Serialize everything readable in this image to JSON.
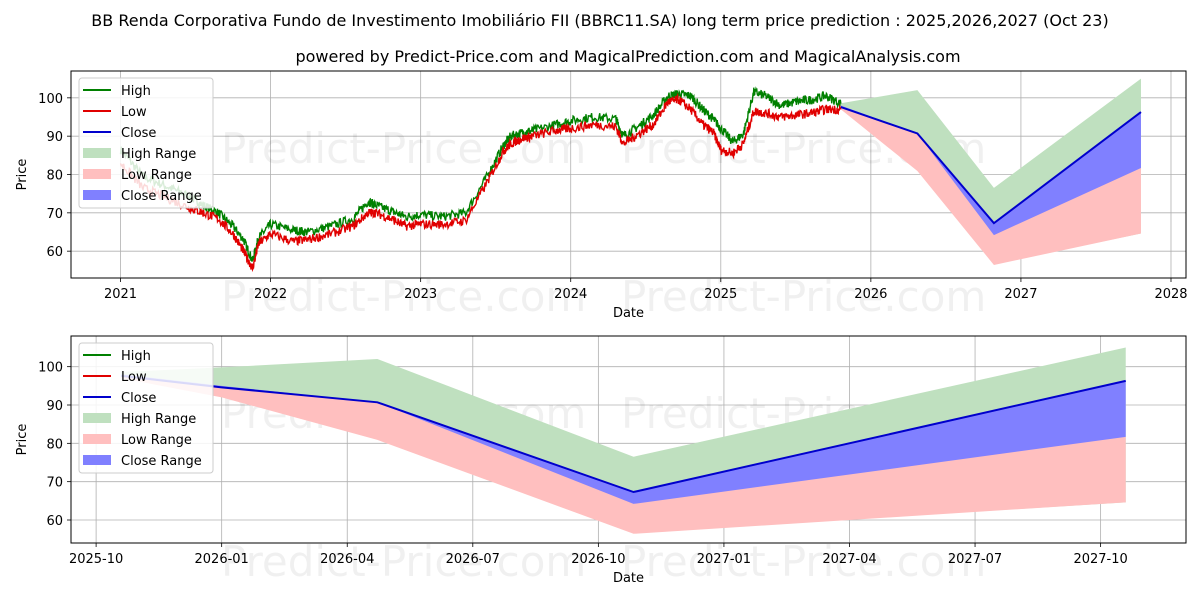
{
  "title": "BB Renda Corporativa Fundo de Investimento Imobiliário FII (BBRC11.SA) long term price prediction : 2025,2026,2027 (Oct 23)",
  "subtitle": "powered by Predict-Price.com and MagicalPrediction.com and MagicalAnalysis.com",
  "watermark": "Predict-Price.com",
  "colors": {
    "high": "#008000",
    "low": "#e00000",
    "close": "#0000cc",
    "high_range": "#bfe0bf",
    "low_range": "#ffbfbf",
    "close_range": "#8080ff",
    "grid": "#b0b0b0"
  },
  "legend": {
    "high": "High",
    "low": "Low",
    "close": "Close",
    "high_range": "High Range",
    "low_range": "Low Range",
    "close_range": "Close Range"
  },
  "chart_data": [
    {
      "type": "line",
      "id": "history",
      "xlabel": "Date",
      "ylabel": "Price",
      "xlim": [
        2020.67,
        2028.1
      ],
      "ylim": [
        53,
        107
      ],
      "xticks": [
        2021,
        2022,
        2023,
        2024,
        2025,
        2026,
        2027,
        2028
      ],
      "xtick_labels": [
        "2021",
        "2022",
        "2023",
        "2024",
        "2025",
        "2026",
        "2027",
        "2028"
      ],
      "yticks": [
        60,
        70,
        80,
        90,
        100
      ],
      "ytick_labels": [
        "60",
        "70",
        "80",
        "90",
        "100"
      ],
      "history": {
        "x": [
          2021.0,
          2021.15,
          2021.3,
          2021.45,
          2021.55,
          2021.65,
          2021.75,
          2021.82,
          2021.88,
          2021.92,
          2022.0,
          2022.15,
          2022.25,
          2022.4,
          2022.55,
          2022.65,
          2022.7,
          2022.8,
          2022.9,
          2023.0,
          2023.15,
          2023.3,
          2023.45,
          2023.55,
          2023.6,
          2023.68,
          2023.75,
          2023.9,
          2024.0,
          2024.15,
          2024.3,
          2024.35,
          2024.45,
          2024.55,
          2024.65,
          2024.72,
          2024.8,
          2024.88,
          2024.95,
          2025.0,
          2025.08,
          2025.15,
          2025.22,
          2025.3,
          2025.4,
          2025.5,
          2025.6,
          2025.7,
          2025.8
        ],
        "high": [
          86.5,
          79.5,
          77.0,
          74.5,
          72.0,
          70.0,
          66.5,
          63.0,
          57.5,
          63.5,
          67.0,
          65.5,
          65.0,
          66.5,
          68.5,
          73.0,
          72.0,
          70.5,
          69.0,
          69.5,
          69.0,
          70.0,
          80.0,
          87.5,
          90.0,
          91.0,
          91.5,
          93.0,
          94.0,
          95.0,
          94.5,
          90.0,
          92.5,
          95.5,
          100.5,
          101.0,
          100.5,
          97.0,
          94.5,
          92.0,
          88.5,
          90.5,
          101.5,
          100.5,
          98.0,
          99.0,
          99.5,
          100.5,
          98.5
        ],
        "low": [
          83.0,
          76.5,
          74.0,
          71.5,
          70.0,
          68.5,
          64.5,
          60.0,
          55.5,
          62.0,
          64.5,
          62.5,
          63.0,
          64.5,
          66.5,
          70.0,
          70.0,
          68.5,
          66.5,
          67.0,
          67.0,
          68.0,
          78.5,
          86.0,
          88.0,
          89.5,
          90.0,
          91.5,
          92.0,
          93.0,
          92.5,
          88.0,
          90.5,
          93.0,
          99.0,
          99.5,
          97.0,
          93.0,
          91.0,
          86.5,
          85.5,
          88.0,
          96.5,
          96.0,
          95.0,
          95.5,
          96.0,
          97.0,
          97.0
        ]
      },
      "forecast": {
        "x": [
          2025.8,
          2026.31,
          2026.82,
          2027.8
        ],
        "close": [
          97.6,
          90.7,
          67.3,
          96.3
        ],
        "high_range": [
          [
            97.6,
            98.6
          ],
          [
            81.8,
            102.0
          ],
          [
            56.7,
            76.5
          ],
          [
            64.6,
            105.0
          ]
        ],
        "low_range": [
          [
            97.0,
            97.6
          ],
          [
            80.9,
            90.7
          ],
          [
            56.4,
            67.3
          ],
          [
            64.6,
            81.7
          ]
        ],
        "close_range": [
          [
            97.6,
            98.0
          ],
          [
            90.7,
            90.7
          ],
          [
            64.2,
            67.3
          ],
          [
            81.7,
            96.3
          ]
        ]
      }
    },
    {
      "type": "line",
      "id": "forecast_zoom",
      "xlabel": "Date",
      "ylabel": "Price",
      "xlim": [
        2025.7,
        2027.92
      ],
      "ylim": [
        54,
        108
      ],
      "xticks": [
        2025.75,
        2026.0,
        2026.25,
        2026.5,
        2026.75,
        2027.0,
        2027.25,
        2027.5,
        2027.75
      ],
      "xtick_labels": [
        "2025-10",
        "2026-01",
        "2026-04",
        "2026-07",
        "2026-10",
        "2027-01",
        "2027-04",
        "2027-07",
        "2027-10"
      ],
      "yticks": [
        60,
        70,
        80,
        90,
        100
      ],
      "ytick_labels": [
        "60",
        "70",
        "80",
        "90",
        "100"
      ],
      "forecast": {
        "x": [
          2025.8,
          2026.0,
          2026.31,
          2026.82,
          2027.8
        ],
        "close": [
          97.6,
          94.6,
          90.7,
          67.3,
          96.3
        ],
        "high_range": [
          [
            97.6,
            98.6
          ],
          [
            93.0,
            99.8
          ],
          [
            81.8,
            102.0
          ],
          [
            56.7,
            76.5
          ],
          [
            64.6,
            105.0
          ]
        ],
        "low_range": [
          [
            97.0,
            97.6
          ],
          [
            92.0,
            94.6
          ],
          [
            80.9,
            90.7
          ],
          [
            56.4,
            67.3
          ],
          [
            64.6,
            81.7
          ]
        ],
        "close_range": [
          [
            97.6,
            98.0
          ],
          [
            94.6,
            95.0
          ],
          [
            90.7,
            90.7
          ],
          [
            64.2,
            67.3
          ],
          [
            81.7,
            96.3
          ]
        ]
      }
    }
  ]
}
